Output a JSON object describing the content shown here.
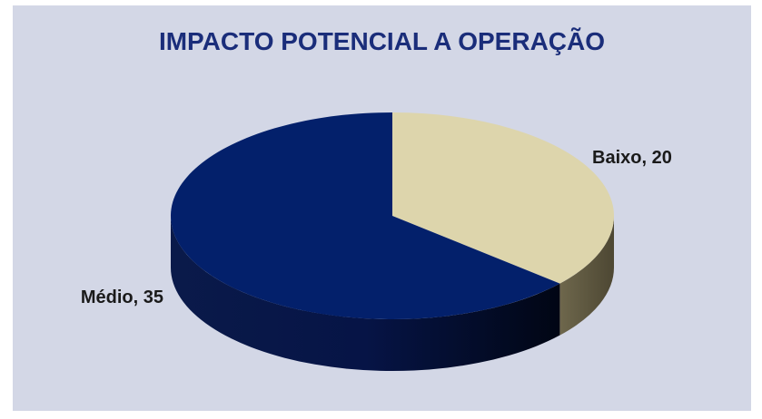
{
  "chart_data": {
    "type": "pie",
    "title": "IMPACTO POTENCIAL A OPERAÇÃO",
    "categories": [
      "Baixo",
      "Médio"
    ],
    "values": [
      20,
      35
    ],
    "labels": [
      "Baixo, 20",
      "Médio, 35"
    ],
    "colors": [
      "#ddd5ac",
      "#03206b"
    ],
    "three_d": true
  }
}
